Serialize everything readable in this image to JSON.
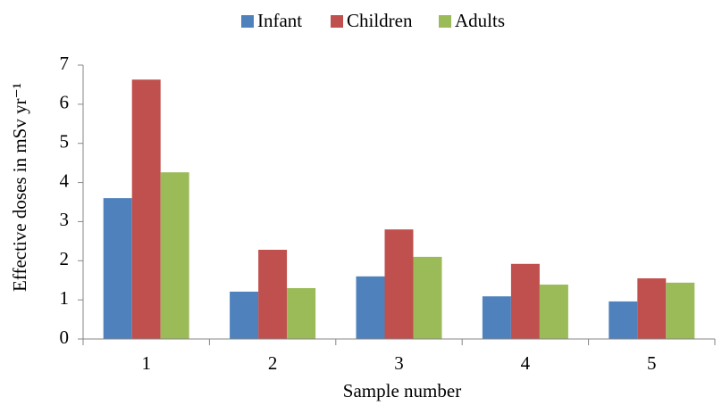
{
  "chart_data": {
    "type": "bar",
    "categories": [
      "1",
      "2",
      "3",
      "4",
      "5"
    ],
    "series": [
      {
        "name": "Infant",
        "color": "#4f81bd",
        "values": [
          3.6,
          1.21,
          1.6,
          1.09,
          0.96
        ]
      },
      {
        "name": "Children",
        "color": "#c0504d",
        "values": [
          6.63,
          2.28,
          2.8,
          1.92,
          1.55
        ]
      },
      {
        "name": "Adults",
        "color": "#9bbb59",
        "values": [
          4.26,
          1.3,
          2.1,
          1.39,
          1.44
        ]
      }
    ],
    "xlabel": "Sample number",
    "ylabel": "Effective doses in mSv yr⁻¹",
    "ylim": [
      0,
      7
    ],
    "yticks": [
      0,
      1,
      2,
      3,
      4,
      5,
      6,
      7
    ],
    "legend": "top"
  }
}
